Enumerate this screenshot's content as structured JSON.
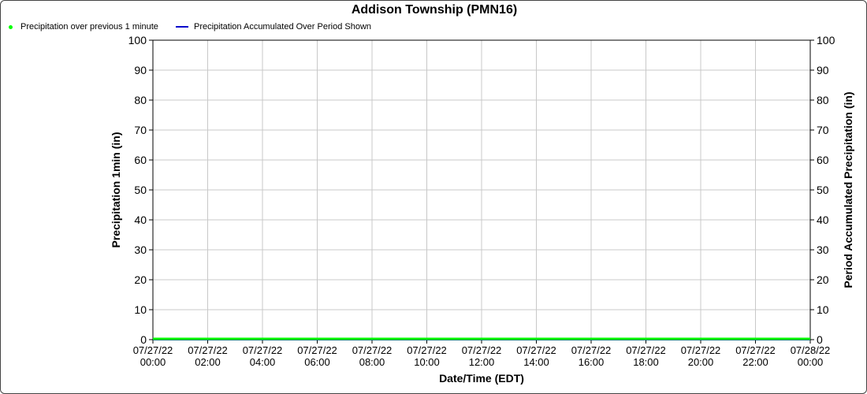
{
  "chart_data": {
    "type": "line",
    "title": "Addison Township (PMN16)",
    "xlabel": "Date/Time (EDT)",
    "ylabel_left": "Precipitation 1min (in)",
    "ylabel_right": "Period Accumulated Precipitation (in)",
    "ylim": [
      0,
      100
    ],
    "y2lim": [
      0,
      100
    ],
    "yticks": [
      "0",
      "10",
      "20",
      "30",
      "40",
      "50",
      "60",
      "70",
      "80",
      "90",
      "100"
    ],
    "x_ticks": [
      {
        "date": "07/27/22",
        "time": "00:00"
      },
      {
        "date": "07/27/22",
        "time": "02:00"
      },
      {
        "date": "07/27/22",
        "time": "04:00"
      },
      {
        "date": "07/27/22",
        "time": "06:00"
      },
      {
        "date": "07/27/22",
        "time": "08:00"
      },
      {
        "date": "07/27/22",
        "time": "10:00"
      },
      {
        "date": "07/27/22",
        "time": "12:00"
      },
      {
        "date": "07/27/22",
        "time": "14:00"
      },
      {
        "date": "07/27/22",
        "time": "16:00"
      },
      {
        "date": "07/27/22",
        "time": "18:00"
      },
      {
        "date": "07/27/22",
        "time": "20:00"
      },
      {
        "date": "07/27/22",
        "time": "22:00"
      },
      {
        "date": "07/28/22",
        "time": "00:00"
      }
    ],
    "grid": true,
    "legend_position": "top-left",
    "series": [
      {
        "name": "Precipitation over previous 1 minute",
        "color": "#00ff00",
        "marker": "dot",
        "axis": "left",
        "x_range": [
          "07/27/22 00:00",
          "07/28/22 00:00"
        ],
        "values_constant": 0
      },
      {
        "name": "Precipitation Accumulated Over Period Shown",
        "color": "#0000cc",
        "marker": "line",
        "axis": "right",
        "x_range": [
          "07/27/22 00:00",
          "07/28/22 00:00"
        ],
        "values_constant": 0
      }
    ]
  }
}
